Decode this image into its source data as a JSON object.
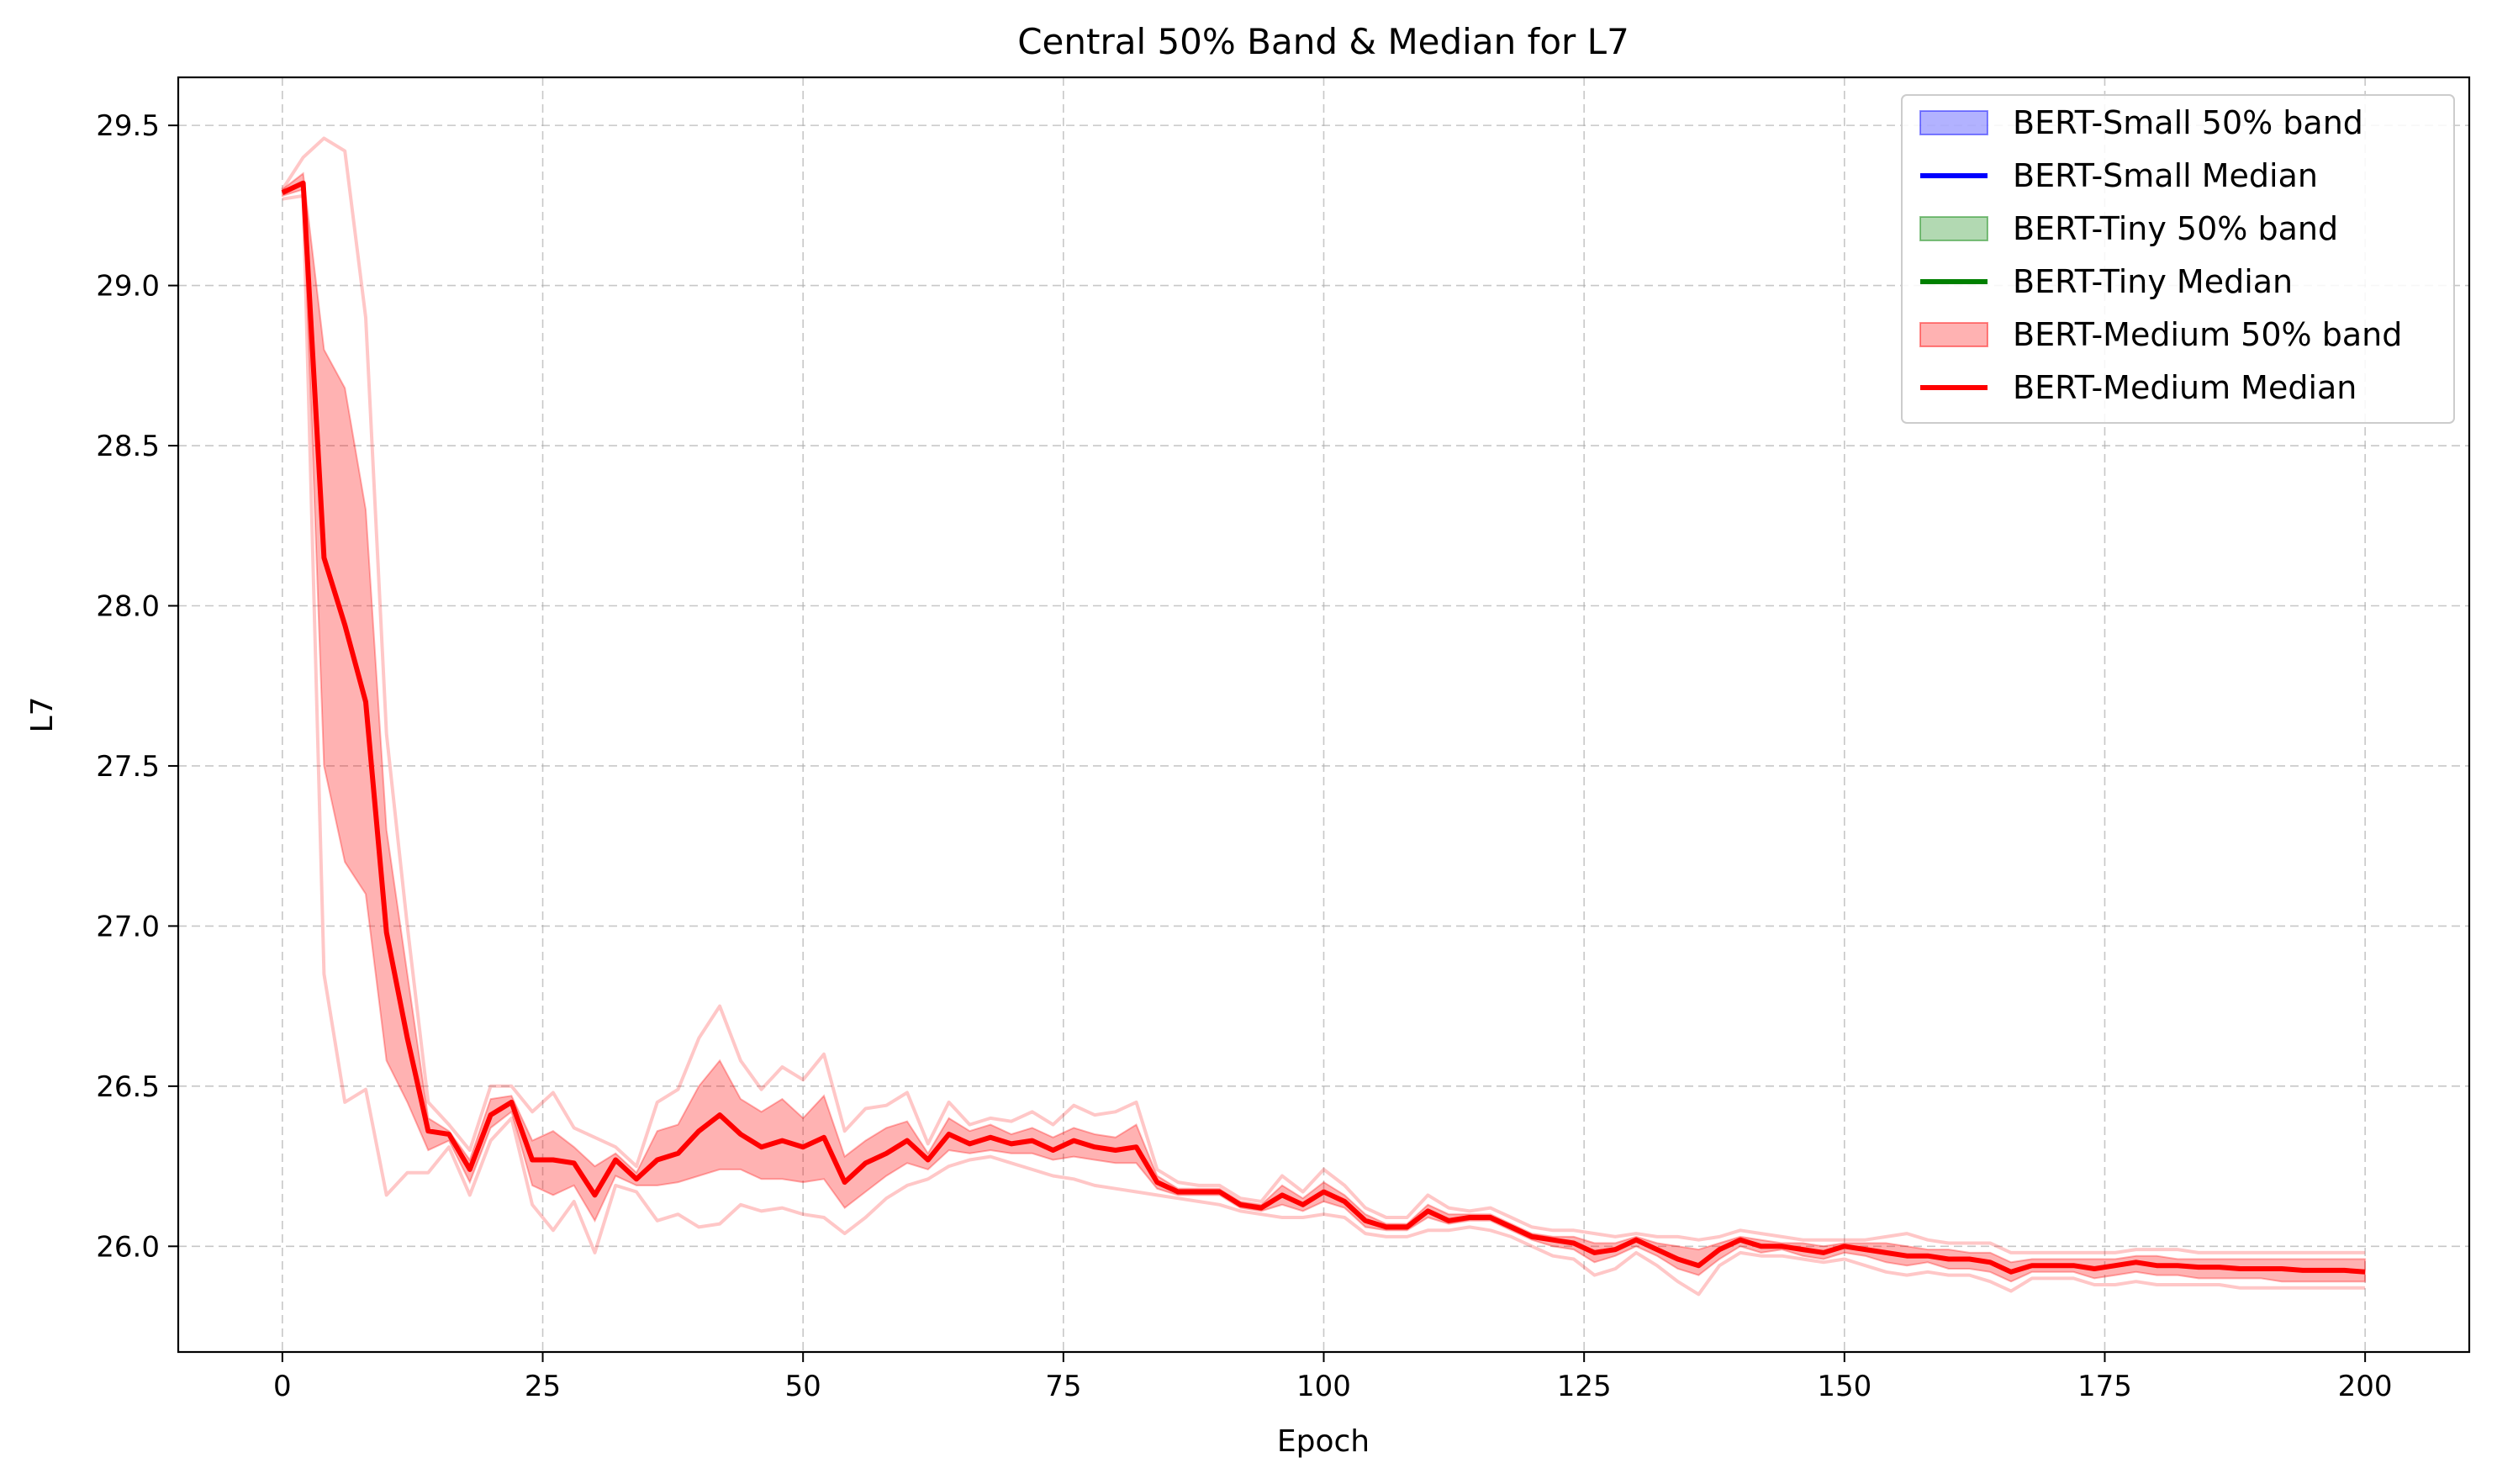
{
  "chart_data": {
    "type": "line",
    "title": "Central 50% Band & Median for L7",
    "xlabel": "Epoch",
    "ylabel": "L7",
    "xlim": [
      -10,
      210
    ],
    "ylim": [
      25.67,
      29.65
    ],
    "xticks": [
      0,
      25,
      50,
      75,
      100,
      125,
      150,
      175,
      200
    ],
    "yticks": [
      26.0,
      26.5,
      27.0,
      27.5,
      28.0,
      28.5,
      29.0,
      29.5
    ],
    "xtick_labels": [
      "0",
      "25",
      "50",
      "75",
      "100",
      "125",
      "150",
      "175",
      "200"
    ],
    "ytick_labels": [
      "26.0",
      "26.5",
      "27.0",
      "27.5",
      "28.0",
      "28.5",
      "29.0",
      "29.5"
    ],
    "grid": true,
    "legend_position": "top-right",
    "legend": [
      {
        "label": "BERT-Small 50% band",
        "kind": "band",
        "color": "#0000ff"
      },
      {
        "label": "BERT-Small Median",
        "kind": "line",
        "color": "#0000ff"
      },
      {
        "label": "BERT-Tiny 50% band",
        "kind": "band",
        "color": "#008000"
      },
      {
        "label": "BERT-Tiny Median",
        "kind": "line",
        "color": "#008000"
      },
      {
        "label": "BERT-Medium 50% band",
        "kind": "band",
        "color": "#ff0000"
      },
      {
        "label": "BERT-Medium Median",
        "kind": "line",
        "color": "#ff0000"
      }
    ],
    "series": [
      {
        "name": "BERT-Medium Median",
        "color": "#ff0000",
        "x": [
          0,
          2,
          4,
          6,
          8,
          10,
          12,
          14,
          16,
          18,
          20,
          22,
          24,
          26,
          28,
          30,
          32,
          34,
          36,
          38,
          40,
          42,
          44,
          46,
          48,
          50,
          52,
          54,
          56,
          58,
          60,
          62,
          64,
          66,
          68,
          70,
          72,
          74,
          76,
          78,
          80,
          82,
          84,
          86,
          88,
          90,
          92,
          94,
          96,
          98,
          100,
          102,
          104,
          106,
          108,
          110,
          112,
          114,
          116,
          118,
          120,
          122,
          124,
          126,
          128,
          130,
          132,
          134,
          136,
          138,
          140,
          142,
          144,
          146,
          148,
          150,
          152,
          154,
          156,
          158,
          160,
          162,
          164,
          166,
          168,
          170,
          172,
          174,
          176,
          178,
          180,
          182,
          184,
          186,
          188,
          190,
          192,
          194,
          196,
          198,
          200
        ],
        "y": [
          29.29,
          29.32,
          28.15,
          27.94,
          27.7,
          26.98,
          26.65,
          26.36,
          26.35,
          26.24,
          26.41,
          26.45,
          26.27,
          26.27,
          26.26,
          26.16,
          26.27,
          26.21,
          26.27,
          26.29,
          26.36,
          26.41,
          26.35,
          26.31,
          26.33,
          26.31,
          26.34,
          26.2,
          26.26,
          26.29,
          26.33,
          26.27,
          26.35,
          26.32,
          26.34,
          26.32,
          26.33,
          26.3,
          26.33,
          26.31,
          26.3,
          26.31,
          26.2,
          26.17,
          26.17,
          26.17,
          26.13,
          26.12,
          26.16,
          26.13,
          26.17,
          26.14,
          26.08,
          26.06,
          26.06,
          26.11,
          26.08,
          26.09,
          26.09,
          26.06,
          26.03,
          26.02,
          26.01,
          25.98,
          25.99,
          26.02,
          25.99,
          25.96,
          25.94,
          25.99,
          26.02,
          26.0,
          26.0,
          25.99,
          25.98,
          26.0,
          25.99,
          25.98,
          25.97,
          25.97,
          25.96,
          25.96,
          25.95,
          25.92,
          25.94,
          25.94,
          25.94,
          25.93,
          25.94,
          25.95,
          25.94,
          25.94,
          25.935,
          25.935,
          25.93,
          25.93,
          25.93,
          25.925,
          25.925,
          25.925,
          25.92
        ]
      },
      {
        "name": "BERT-Medium 50% band",
        "color": "#ff0000",
        "x": [
          0,
          2,
          4,
          6,
          8,
          10,
          12,
          14,
          16,
          18,
          20,
          22,
          24,
          26,
          28,
          30,
          32,
          34,
          36,
          38,
          40,
          42,
          44,
          46,
          48,
          50,
          52,
          54,
          56,
          58,
          60,
          62,
          64,
          66,
          68,
          70,
          72,
          74,
          76,
          78,
          80,
          82,
          84,
          86,
          88,
          90,
          92,
          94,
          96,
          98,
          100,
          102,
          104,
          106,
          108,
          110,
          112,
          114,
          116,
          118,
          120,
          122,
          124,
          126,
          128,
          130,
          132,
          134,
          136,
          138,
          140,
          142,
          144,
          146,
          148,
          150,
          152,
          154,
          156,
          158,
          160,
          162,
          164,
          166,
          168,
          170,
          172,
          174,
          176,
          178,
          180,
          182,
          184,
          186,
          188,
          190,
          192,
          194,
          196,
          198,
          200
        ],
        "upper": [
          29.3,
          29.35,
          28.8,
          28.68,
          28.3,
          27.3,
          26.85,
          26.4,
          26.36,
          26.27,
          26.46,
          26.47,
          26.33,
          26.36,
          26.31,
          26.25,
          26.29,
          26.23,
          26.36,
          26.38,
          26.5,
          26.58,
          26.46,
          26.42,
          26.46,
          26.4,
          26.47,
          26.28,
          26.33,
          26.37,
          26.39,
          26.29,
          26.4,
          26.36,
          26.38,
          26.35,
          26.37,
          26.34,
          26.37,
          26.35,
          26.34,
          26.38,
          26.22,
          26.18,
          26.18,
          26.18,
          26.14,
          26.13,
          26.19,
          26.15,
          26.2,
          26.16,
          26.1,
          26.07,
          26.07,
          26.13,
          26.1,
          26.1,
          26.1,
          26.07,
          26.04,
          26.03,
          26.03,
          26.01,
          26.01,
          26.03,
          26.01,
          26.0,
          25.99,
          26.01,
          26.03,
          26.02,
          26.01,
          26.01,
          26.0,
          26.01,
          26.01,
          26.01,
          26.0,
          25.99,
          25.99,
          25.98,
          25.98,
          25.95,
          25.96,
          25.96,
          25.96,
          25.96,
          25.96,
          25.97,
          25.97,
          25.96,
          25.96,
          25.96,
          25.96,
          25.96,
          25.96,
          25.96,
          25.96,
          25.96,
          25.96
        ],
        "lower": [
          29.28,
          29.3,
          27.5,
          27.2,
          27.1,
          26.58,
          26.45,
          26.3,
          26.33,
          26.2,
          26.37,
          26.42,
          26.19,
          26.16,
          26.19,
          26.08,
          26.22,
          26.19,
          26.19,
          26.2,
          26.22,
          26.24,
          26.24,
          26.21,
          26.21,
          26.2,
          26.21,
          26.12,
          26.17,
          26.22,
          26.26,
          26.24,
          26.3,
          26.29,
          26.3,
          26.29,
          26.29,
          26.27,
          26.28,
          26.27,
          26.26,
          26.26,
          26.18,
          26.16,
          26.16,
          26.16,
          26.12,
          26.11,
          26.13,
          26.11,
          26.14,
          26.12,
          26.06,
          26.05,
          26.05,
          26.09,
          26.07,
          26.08,
          26.08,
          26.05,
          26.02,
          26.0,
          25.99,
          25.95,
          25.97,
          26.0,
          25.97,
          25.93,
          25.91,
          25.96,
          26.0,
          25.98,
          25.99,
          25.97,
          25.96,
          25.98,
          25.97,
          25.95,
          25.94,
          25.95,
          25.93,
          25.93,
          25.92,
          25.89,
          25.92,
          25.92,
          25.92,
          25.9,
          25.91,
          25.92,
          25.91,
          25.91,
          25.9,
          25.9,
          25.9,
          25.9,
          25.89,
          25.89,
          25.89,
          25.89,
          25.89
        ]
      },
      {
        "name": "BERT-Medium upper",
        "color": "#ff0000",
        "x": [
          0,
          2,
          4,
          6,
          8,
          10,
          12,
          14,
          16,
          18,
          20,
          22,
          24,
          26,
          28,
          30,
          32,
          34,
          36,
          38,
          40,
          42,
          44,
          46,
          48,
          50,
          52,
          54,
          56,
          58,
          60,
          62,
          64,
          66,
          68,
          70,
          72,
          74,
          76,
          78,
          80,
          82,
          84,
          86,
          88,
          90,
          92,
          94,
          96,
          98,
          100,
          102,
          104,
          106,
          108,
          110,
          112,
          114,
          116,
          118,
          120,
          122,
          124,
          126,
          128,
          130,
          132,
          134,
          136,
          138,
          140,
          142,
          144,
          146,
          148,
          150,
          152,
          154,
          156,
          158,
          160,
          162,
          164,
          166,
          168,
          170,
          172,
          174,
          176,
          178,
          180,
          182,
          184,
          186,
          188,
          190,
          192,
          194,
          196,
          198,
          200
        ],
        "y": [
          29.3,
          29.4,
          29.46,
          29.42,
          28.9,
          27.6,
          27.0,
          26.45,
          26.38,
          26.3,
          26.5,
          26.5,
          26.42,
          26.48,
          26.37,
          26.34,
          26.31,
          26.25,
          26.45,
          26.49,
          26.65,
          26.75,
          26.58,
          26.49,
          26.56,
          26.52,
          26.6,
          26.36,
          26.43,
          26.44,
          26.48,
          26.32,
          26.45,
          26.38,
          26.4,
          26.39,
          26.42,
          26.38,
          26.44,
          26.41,
          26.42,
          26.45,
          26.24,
          26.2,
          26.19,
          26.19,
          26.15,
          26.14,
          26.22,
          26.17,
          26.24,
          26.19,
          26.12,
          26.09,
          26.09,
          26.16,
          26.12,
          26.11,
          26.12,
          26.09,
          26.06,
          26.05,
          26.05,
          26.04,
          26.03,
          26.04,
          26.03,
          26.03,
          26.02,
          26.03,
          26.05,
          26.04,
          26.03,
          26.02,
          26.02,
          26.02,
          26.02,
          26.03,
          26.04,
          26.02,
          26.01,
          26.01,
          26.01,
          25.98,
          25.98,
          25.98,
          25.98,
          25.98,
          25.98,
          25.99,
          25.99,
          25.99,
          25.98,
          25.98,
          25.98,
          25.98,
          25.98,
          25.98,
          25.98,
          25.98,
          25.98
        ]
      },
      {
        "name": "BERT-Medium lower",
        "color": "#ff0000",
        "x": [
          0,
          2,
          4,
          6,
          8,
          10,
          12,
          14,
          16,
          18,
          20,
          22,
          24,
          26,
          28,
          30,
          32,
          34,
          36,
          38,
          40,
          42,
          44,
          46,
          48,
          50,
          52,
          54,
          56,
          58,
          60,
          62,
          64,
          66,
          68,
          70,
          72,
          74,
          76,
          78,
          80,
          82,
          84,
          86,
          88,
          90,
          92,
          94,
          96,
          98,
          100,
          102,
          104,
          106,
          108,
          110,
          112,
          114,
          116,
          118,
          120,
          122,
          124,
          126,
          128,
          130,
          132,
          134,
          136,
          138,
          140,
          142,
          144,
          146,
          148,
          150,
          152,
          154,
          156,
          158,
          160,
          162,
          164,
          166,
          168,
          170,
          172,
          174,
          176,
          178,
          180,
          182,
          184,
          186,
          188,
          190,
          192,
          194,
          196,
          198,
          200
        ],
        "y": [
          29.27,
          29.28,
          26.85,
          26.45,
          26.49,
          26.16,
          26.23,
          26.23,
          26.31,
          26.16,
          26.33,
          26.4,
          26.13,
          26.05,
          26.14,
          25.98,
          26.19,
          26.17,
          26.08,
          26.1,
          26.06,
          26.07,
          26.13,
          26.11,
          26.12,
          26.1,
          26.09,
          26.04,
          26.09,
          26.15,
          26.19,
          26.21,
          26.25,
          26.27,
          26.28,
          26.26,
          26.24,
          26.22,
          26.21,
          26.19,
          26.18,
          26.17,
          26.16,
          26.15,
          26.14,
          26.13,
          26.11,
          26.1,
          26.09,
          26.09,
          26.1,
          26.09,
          26.04,
          26.03,
          26.03,
          26.05,
          26.05,
          26.06,
          26.05,
          26.03,
          26.0,
          25.97,
          25.96,
          25.91,
          25.93,
          25.98,
          25.94,
          25.89,
          25.85,
          25.94,
          25.98,
          25.97,
          25.97,
          25.96,
          25.95,
          25.96,
          25.94,
          25.92,
          25.91,
          25.92,
          25.91,
          25.91,
          25.89,
          25.86,
          25.9,
          25.9,
          25.9,
          25.88,
          25.88,
          25.89,
          25.88,
          25.88,
          25.88,
          25.88,
          25.87,
          25.87,
          25.87,
          25.87,
          25.87,
          25.87,
          25.87
        ]
      }
    ]
  }
}
